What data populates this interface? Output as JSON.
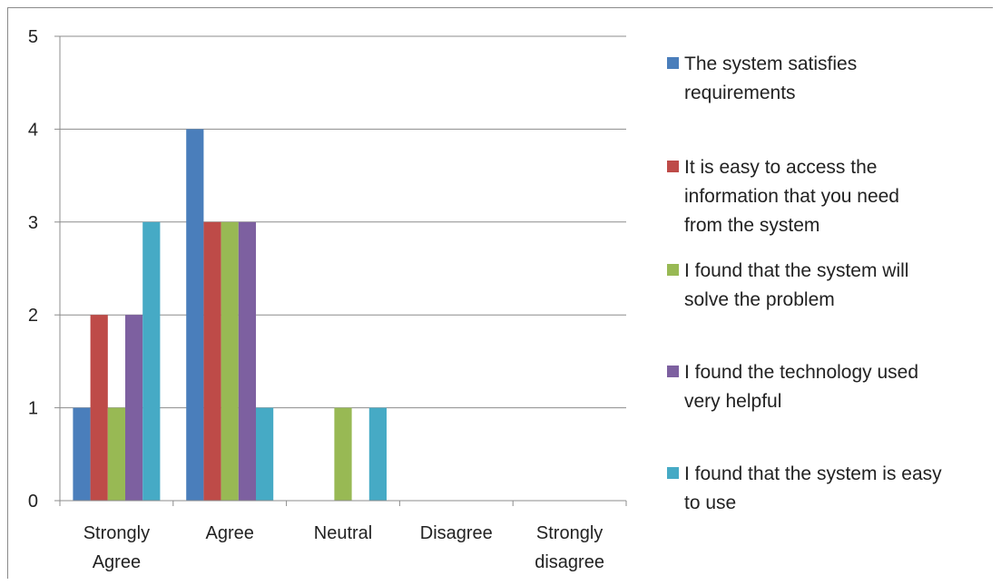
{
  "chart_data": {
    "type": "bar",
    "title": "",
    "xlabel": "",
    "ylabel": "",
    "categories": [
      [
        "Strongly",
        "Agree"
      ],
      [
        "Agree"
      ],
      [
        "Neutral"
      ],
      [
        "Disagree"
      ],
      [
        "Strongly",
        "disagree"
      ]
    ],
    "ylim": [
      0,
      5
    ],
    "yticks": [
      0,
      1,
      2,
      3,
      4,
      5
    ],
    "grid": true,
    "legend_position": "right",
    "series": [
      {
        "name": "The system satisfies requirements",
        "color": "#4a7ebb",
        "values": [
          1,
          4,
          0,
          0,
          0
        ]
      },
      {
        "name": "It is easy to access the information that you need from the system",
        "color": "#be4b48",
        "values": [
          2,
          3,
          0,
          0,
          0
        ]
      },
      {
        "name": "I found that the system will solve the problem",
        "color": "#98b954",
        "values": [
          1,
          3,
          1,
          0,
          0
        ]
      },
      {
        "name": "I found the technology used very helpful",
        "color": "#7d60a0",
        "values": [
          2,
          3,
          0,
          0,
          0
        ]
      },
      {
        "name": "I found that the system is easy to use",
        "color": "#46aac5",
        "values": [
          3,
          1,
          1,
          0,
          0
        ]
      }
    ]
  },
  "legend": {
    "items": [
      {
        "lines": [
          "The system satisfies",
          "requirements"
        ]
      },
      {
        "lines": [
          "It is easy to access the",
          "information that you need",
          "from the system"
        ]
      },
      {
        "lines": [
          "I found that the system will",
          "solve the problem"
        ]
      },
      {
        "lines": [
          "I found the technology used",
          "very helpful"
        ]
      },
      {
        "lines": [
          "I found that the system is easy",
          "to use"
        ]
      }
    ]
  }
}
